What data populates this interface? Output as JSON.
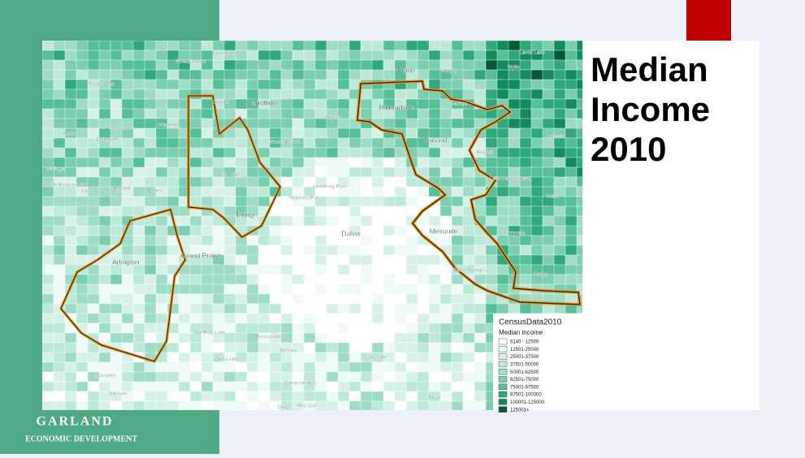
{
  "slide": {
    "title_lines": [
      "Median",
      "Income",
      "2010"
    ]
  },
  "logo": {
    "name": "GARLAND",
    "tagline": "ECONOMIC DEVELOPMENT"
  },
  "map": {
    "places": [
      "Flower Mound",
      "Lewisville",
      "Plano",
      "Murphy",
      "Wylie",
      "Lavon Lake",
      "Trophy Club",
      "Coppell",
      "Carrollton",
      "Richardson",
      "Sachse",
      "Southlake",
      "Grapevine",
      "Addison",
      "Keller",
      "Colleyville",
      "Farmers Branch",
      "Garland",
      "Rowlett",
      "Rockwall",
      "Watauga",
      "North Richland Hills",
      "Hurst",
      "Bedford",
      "Euless",
      "Las Colinas",
      "University Park",
      "Highland Park",
      "Lake Ray Hubbard",
      "Heath",
      "Irving",
      "Dallas",
      "Mesquite",
      "Sunnyvale",
      "Arlington",
      "Grand Prairie",
      "Forney",
      "Balch Springs",
      "Duncanville",
      "Joe Pool Lake",
      "DeSoto",
      "Lancaster",
      "Cedar Hill",
      "Glenn Heights",
      "Mansfield",
      "Johnson",
      "Ovilla",
      "Red Oak",
      "Ferris"
    ],
    "legend": {
      "title": "CensusData2010",
      "subtitle": "Median income",
      "classes": [
        {
          "label": "6140 - 12500",
          "color": "#ffffff"
        },
        {
          "label": "12501-25000",
          "color": "#eefaf5"
        },
        {
          "label": "25001-37500",
          "color": "#d6f2e7"
        },
        {
          "label": "37501-50000",
          "color": "#bde9d9"
        },
        {
          "label": "50001-62500",
          "color": "#9fdcc6"
        },
        {
          "label": "62501-75000",
          "color": "#7acfb0"
        },
        {
          "label": "75001-87500",
          "color": "#55bf98"
        },
        {
          "label": "87501-100000",
          "color": "#2fa97b"
        },
        {
          "label": "100001-125000",
          "color": "#128c5b"
        },
        {
          "label": "125001+",
          "color": "#055a35"
        }
      ]
    }
  }
}
